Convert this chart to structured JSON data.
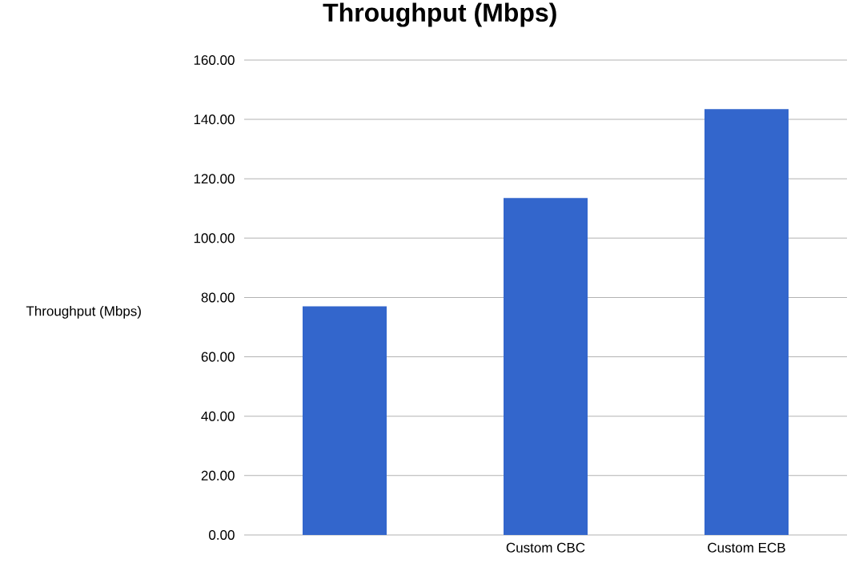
{
  "chart_data": {
    "type": "bar",
    "title": "Throughput (Mbps)",
    "ylabel": "Throughput (Mbps)",
    "categories": [
      null,
      "Custom CBC",
      "Custom ECB"
    ],
    "values": [
      77,
      113.5,
      143.5
    ],
    "color": "#3366cc",
    "ylim": [
      0,
      160
    ],
    "yticks": [
      {
        "value": 0,
        "label": "0.00"
      },
      {
        "value": 20,
        "label": "20.00"
      },
      {
        "value": 40,
        "label": "40.00"
      },
      {
        "value": 60,
        "label": "60.00"
      },
      {
        "value": 80,
        "label": "80.00"
      },
      {
        "value": 100,
        "label": "100.00"
      },
      {
        "value": 120,
        "label": "120.00"
      },
      {
        "value": 140,
        "label": "140.00"
      },
      {
        "value": 160,
        "label": "160.00"
      }
    ],
    "grid": "y"
  }
}
